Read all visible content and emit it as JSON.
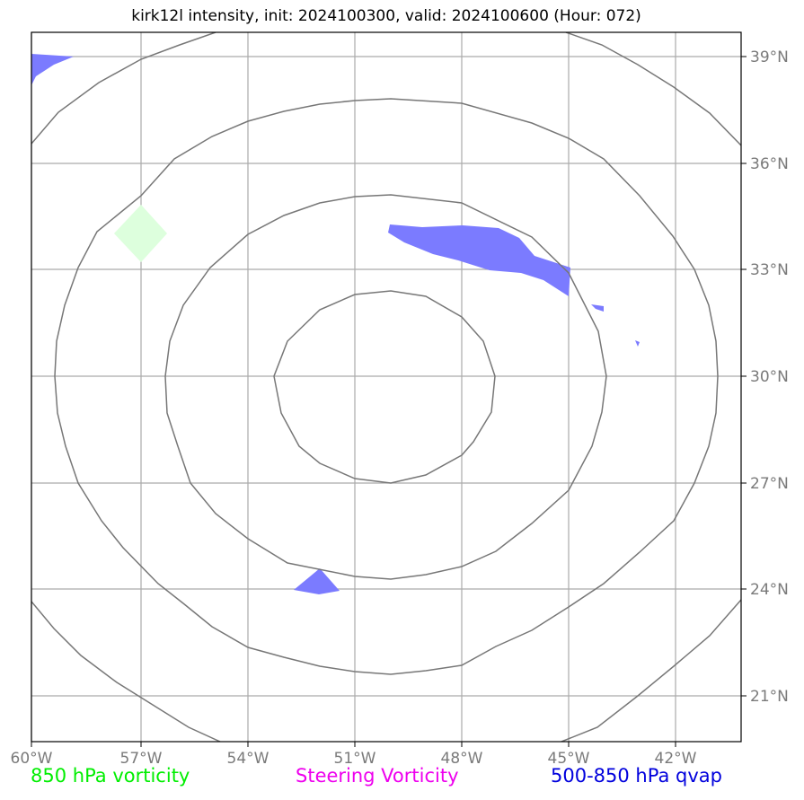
{
  "title": "kirk12l intensity, init: 2024100300, valid: 2024100600 (Hour: 072)",
  "map": {
    "lon_ticks": [
      "60°W",
      "57°W",
      "54°W",
      "51°W",
      "48°W",
      "45°W",
      "42°W"
    ],
    "lat_ticks": [
      "39°N",
      "36°N",
      "33°N",
      "30°N",
      "27°N",
      "24°N",
      "21°N"
    ],
    "grid": true,
    "colors": {
      "vorticity_850": "#00ff00",
      "steering_vorticity": "#ff00ff",
      "qvap_500_850": "#0000ff",
      "range_rings": "#777777",
      "gridlines": "#aaaaaa"
    }
  },
  "legend": {
    "item1": "850 hPa vorticity",
    "item2": "Steering Vorticity",
    "item3": "500-850 hPa qvap"
  }
}
